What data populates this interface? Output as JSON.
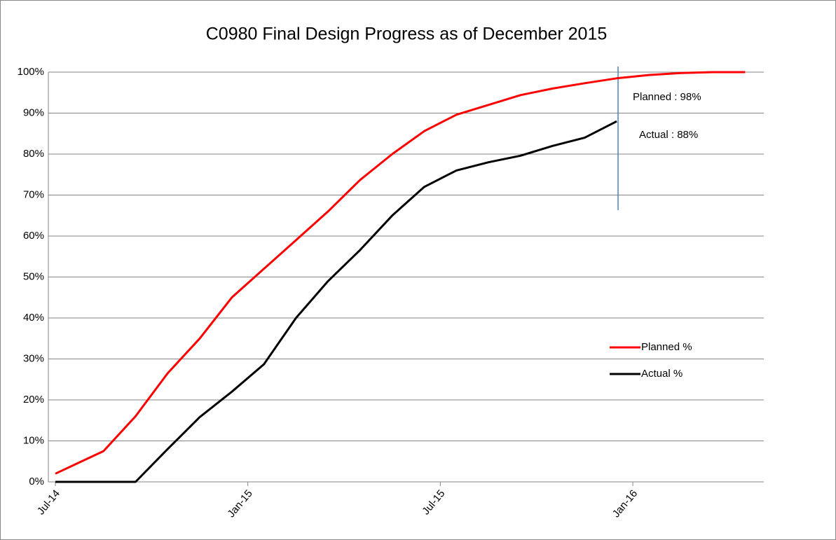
{
  "chart_data": {
    "type": "line",
    "title": "C0980 Final Design Progress as of December 2015",
    "x": [
      "Jul-14",
      "Aug-14",
      "Sep-14",
      "Oct-14",
      "Nov-14",
      "Dec-14",
      "Jan-15",
      "Feb-15",
      "Mar-15",
      "Apr-15",
      "May-15",
      "Jun-15",
      "Jul-15",
      "Aug-15",
      "Sep-15",
      "Oct-15",
      "Nov-15",
      "Dec-15",
      "Jan-16",
      "Feb-16",
      "Mar-16",
      "Apr-16"
    ],
    "series": [
      {
        "name": "Planned %",
        "color": "#ff0000",
        "values": [
          2,
          7.5,
          16,
          26.5,
          35,
          45,
          52,
          59,
          66,
          73.7,
          80,
          85.6,
          89.6,
          92,
          94.4,
          96,
          97.3,
          98.5,
          99.3,
          99.8,
          100,
          100
        ]
      },
      {
        "name": "Actual %",
        "color": "#000000",
        "values": [
          0,
          0,
          0,
          8,
          15.8,
          22,
          28.7,
          40,
          49,
          56.6,
          65,
          72,
          76,
          78,
          79.6,
          82,
          84,
          88,
          null,
          null,
          null,
          null
        ]
      }
    ],
    "ylim": [
      0,
      100
    ],
    "yticks": [
      {
        "value": 0,
        "label": "0%"
      },
      {
        "value": 10,
        "label": "10%"
      },
      {
        "value": 20,
        "label": "20%"
      },
      {
        "value": 30,
        "label": "30%"
      },
      {
        "value": 40,
        "label": "40%"
      },
      {
        "value": 50,
        "label": "50%"
      },
      {
        "value": 60,
        "label": "60%"
      },
      {
        "value": 70,
        "label": "70%"
      },
      {
        "value": 80,
        "label": "80%"
      },
      {
        "value": 90,
        "label": "90%"
      },
      {
        "value": 100,
        "label": "100%"
      }
    ],
    "xticks": [
      "Jul-14",
      "Jan-15",
      "Jul-15",
      "Jan-16"
    ],
    "grid": true,
    "annotations": [
      "Planned : 98%",
      "Actual : 88%"
    ],
    "legend": "right"
  }
}
